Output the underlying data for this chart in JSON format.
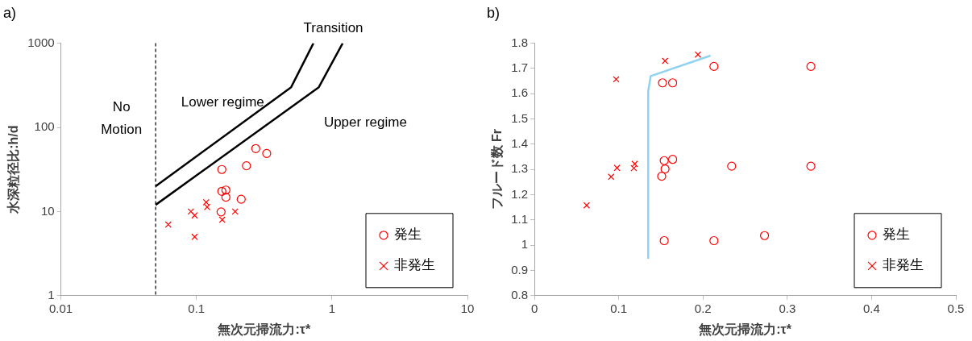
{
  "chart_data": [
    {
      "type": "scatter",
      "title": "a)",
      "xlabel": "無次元掃流力:τ*",
      "ylabel": "水深粒径比:h/d",
      "log": "xy",
      "xlim": [
        0.01,
        10
      ],
      "ylim": [
        1,
        1000
      ],
      "xticks": [
        0.01,
        0.1,
        1,
        10
      ],
      "yticks": [
        1,
        10,
        100,
        1000
      ],
      "grid": false,
      "legend": "bottom right",
      "series": [
        {
          "name": "発生",
          "color": "#ff0000",
          "marker": "circle",
          "x": [
            0.274,
            0.33,
            0.234,
            0.154,
            0.154,
            0.165,
            0.165,
            0.214,
            0.152
          ],
          "values": [
            56,
            49,
            35,
            31.6,
            17.4,
            18,
            14.8,
            14,
            9.9
          ]
        },
        {
          "name": "非発生",
          "color": "#ff0000",
          "marker": "cross",
          "x": [
            0.062,
            0.091,
            0.097,
            0.118,
            0.12,
            0.155,
            0.193,
            0.097
          ],
          "values": [
            7,
            10,
            9,
            12.9,
            11.3,
            8,
            10,
            5
          ]
        },
        {
          "type": "line",
          "color": "#000000",
          "marker": "none",
          "x": [
            0.05,
            0.5,
            0.73
          ],
          "values": [
            20,
            300,
            1000
          ]
        },
        {
          "type": "line",
          "color": "#000000",
          "marker": "none",
          "x": [
            0.05,
            0.8,
            1.2
          ],
          "values": [
            12,
            300,
            1000
          ]
        }
      ],
      "ref_lines": [
        {
          "axis": "x",
          "value": 0.05,
          "color": "#000000",
          "line_style": "dashed"
        }
      ],
      "annotations": [
        "Transition",
        "No\nMotion",
        "Lower regime",
        "Upper regime"
      ]
    },
    {
      "type": "scatter",
      "title": "b)",
      "xlabel": "無次元掃流力:τ*",
      "ylabel": "フルード数 Fr",
      "xlim": [
        0,
        0.5
      ],
      "ylim": [
        0.8,
        1.8
      ],
      "xticks": [
        0,
        0.1,
        0.2,
        0.3,
        0.4,
        0.5
      ],
      "yticks": [
        0.8,
        0.9,
        1,
        1.1,
        1.2,
        1.3,
        1.4,
        1.5,
        1.6,
        1.7,
        1.8
      ],
      "grid": false,
      "legend": "bottom right",
      "series": [
        {
          "name": "発生",
          "color": "#ff0000",
          "marker": "circle",
          "x": [
            0.213,
            0.328,
            0.152,
            0.164,
            0.154,
            0.164,
            0.155,
            0.151,
            0.234,
            0.328,
            0.154,
            0.213,
            0.273
          ],
          "values": [
            1.708,
            1.708,
            1.643,
            1.643,
            1.335,
            1.34,
            1.302,
            1.273,
            1.313,
            1.313,
            1.018,
            1.018,
            1.038
          ]
        },
        {
          "name": "非発生",
          "color": "#ff0000",
          "marker": "cross",
          "x": [
            0.194,
            0.155,
            0.097,
            0.098,
            0.091,
            0.119,
            0.118,
            0.062
          ],
          "values": [
            1.755,
            1.73,
            1.657,
            1.306,
            1.271,
            1.322,
            1.305,
            1.158
          ]
        },
        {
          "type": "line",
          "color": "#8fd3f0",
          "marker": "none",
          "x": [
            0.135,
            0.135,
            0.138,
            0.209
          ],
          "values": [
            0.946,
            1.61,
            1.67,
            1.751
          ]
        }
      ]
    }
  ]
}
